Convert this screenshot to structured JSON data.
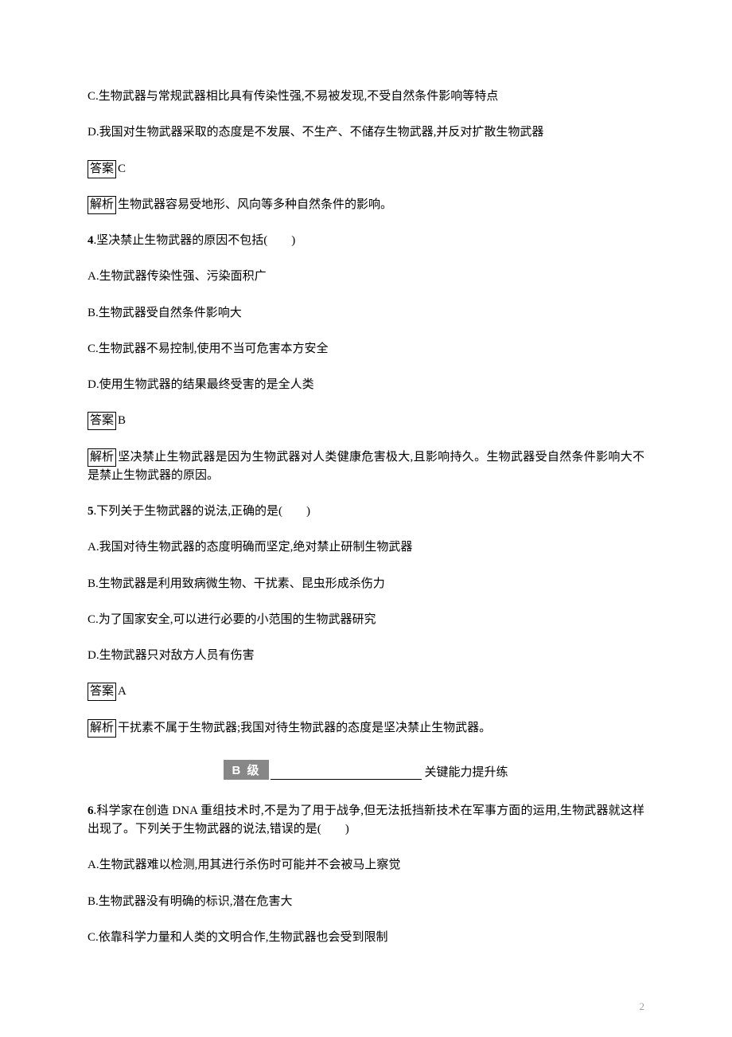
{
  "colors": {
    "text": "#000000",
    "background": "#ffffff",
    "badge_bg": "#878787",
    "badge_text": "#ffffff",
    "pagenum": "#9c9c9c"
  },
  "typography": {
    "body_font": "SimSun",
    "body_size_pt": 11,
    "line_height": 1.55
  },
  "prev_q3": {
    "option_c": "C.生物武器与常规武器相比具有传染性强,不易被发现,不受自然条件影响等特点",
    "option_d": "D.我国对生物武器采取的态度是不发展、不生产、不储存生物武器,并反对扩散生物武器",
    "answer_label": "答案",
    "answer": "C",
    "analysis_label": "解析",
    "analysis": "生物武器容易受地形、风向等多种自然条件的影响。"
  },
  "q4": {
    "num": "4",
    "stem": ".坚决禁止生物武器的原因不包括(　　)",
    "option_a": "A.生物武器传染性强、污染面积广",
    "option_b": "B.生物武器受自然条件影响大",
    "option_c": "C.生物武器不易控制,使用不当可危害本方安全",
    "option_d": "D.使用生物武器的结果最终受害的是全人类",
    "answer_label": "答案",
    "answer": "B",
    "analysis_label": "解析",
    "analysis": "坚决禁止生物武器是因为生物武器对人类健康危害极大,且影响持久。生物武器受自然条件影响大不是禁止生物武器的原因。"
  },
  "q5": {
    "num": "5",
    "stem": ".下列关于生物武器的说法,正确的是(　　)",
    "option_a": "A.我国对待生物武器的态度明确而坚定,绝对禁止研制生物武器",
    "option_b": "B.生物武器是利用致病微生物、干扰素、昆虫形成杀伤力",
    "option_c": "C.为了国家安全,可以进行必要的小范围的生物武器研究",
    "option_d": "D.生物武器只对敌方人员有伤害",
    "answer_label": "答案",
    "answer": "A",
    "analysis_label": "解析",
    "analysis": "干扰素不属于生物武器;我国对待生物武器的态度是坚决禁止生物武器。"
  },
  "level_section": {
    "badge": "B 级",
    "label": "关键能力提升练"
  },
  "q6": {
    "num": "6",
    "stem": ".科学家在创造 DNA 重组技术时,不是为了用于战争,但无法抵挡新技术在军事方面的运用,生物武器就这样出现了。下列关于生物武器的说法,错误的是(　　)",
    "option_a": "A.生物武器难以检测,用其进行杀伤时可能并不会被马上察觉",
    "option_b": "B.生物武器没有明确的标识,潜在危害大",
    "option_c": "C.依靠科学力量和人类的文明合作,生物武器也会受到限制"
  },
  "page_number": "2"
}
